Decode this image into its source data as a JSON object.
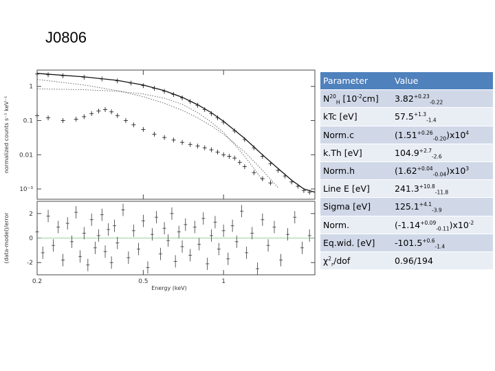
{
  "slide": {
    "title": "J0806"
  },
  "chart_data": [
    {
      "type": "scatter",
      "panel": "spectrum",
      "ylabel": "normalized counts s⁻¹ keV⁻¹",
      "yscale": "log",
      "xscale": "log",
      "xlim": [
        0.2,
        2.2
      ],
      "ylim": [
        0.0005,
        3
      ],
      "y_ticks": [
        1,
        0.1,
        0.01,
        0.001
      ],
      "y_tick_labels": [
        "1",
        "0.1",
        "0.01",
        "10⁻³"
      ],
      "data_points": [
        [
          0.2,
          2.3
        ],
        [
          0.22,
          2.2
        ],
        [
          0.25,
          2.05
        ],
        [
          0.3,
          1.85
        ],
        [
          0.35,
          1.65
        ],
        [
          0.4,
          1.45
        ],
        [
          0.45,
          1.25
        ],
        [
          0.5,
          1.05
        ],
        [
          0.55,
          0.88
        ],
        [
          0.6,
          0.72
        ],
        [
          0.65,
          0.58
        ],
        [
          0.7,
          0.46
        ],
        [
          0.75,
          0.36
        ],
        [
          0.8,
          0.28
        ],
        [
          0.85,
          0.21
        ],
        [
          0.9,
          0.16
        ],
        [
          0.95,
          0.12
        ],
        [
          1.0,
          0.09
        ],
        [
          1.1,
          0.05
        ],
        [
          1.2,
          0.028
        ],
        [
          1.3,
          0.016
        ],
        [
          1.4,
          0.009
        ],
        [
          1.5,
          0.0055
        ],
        [
          1.6,
          0.0035
        ],
        [
          1.7,
          0.0024
        ],
        [
          1.8,
          0.0016
        ],
        [
          1.9,
          0.0012
        ],
        [
          2.0,
          0.0009
        ],
        [
          2.1,
          0.0008
        ]
      ],
      "lower_points": [
        [
          0.2,
          0.14
        ],
        [
          0.22,
          0.12
        ],
        [
          0.25,
          0.1
        ],
        [
          0.28,
          0.11
        ],
        [
          0.3,
          0.13
        ],
        [
          0.32,
          0.16
        ],
        [
          0.34,
          0.19
        ],
        [
          0.36,
          0.21
        ],
        [
          0.38,
          0.18
        ],
        [
          0.4,
          0.14
        ],
        [
          0.43,
          0.1
        ],
        [
          0.46,
          0.075
        ],
        [
          0.5,
          0.055
        ],
        [
          0.55,
          0.04
        ],
        [
          0.6,
          0.032
        ],
        [
          0.65,
          0.027
        ],
        [
          0.7,
          0.023
        ],
        [
          0.75,
          0.02
        ],
        [
          0.8,
          0.018
        ],
        [
          0.85,
          0.016
        ],
        [
          0.9,
          0.014
        ],
        [
          0.95,
          0.012
        ],
        [
          1.0,
          0.01
        ],
        [
          1.05,
          0.009
        ],
        [
          1.1,
          0.008
        ],
        [
          1.15,
          0.006
        ],
        [
          1.2,
          0.0045
        ],
        [
          1.3,
          0.003
        ],
        [
          1.4,
          0.002
        ],
        [
          1.5,
          0.0015
        ]
      ],
      "model_total": [
        [
          0.2,
          2.4
        ],
        [
          0.3,
          1.9
        ],
        [
          0.4,
          1.5
        ],
        [
          0.5,
          1.1
        ],
        [
          0.6,
          0.75
        ],
        [
          0.7,
          0.48
        ],
        [
          0.8,
          0.29
        ],
        [
          0.9,
          0.17
        ],
        [
          1.0,
          0.095
        ],
        [
          1.2,
          0.03
        ],
        [
          1.4,
          0.01
        ],
        [
          1.6,
          0.004
        ],
        [
          1.8,
          0.0018
        ],
        [
          2.0,
          0.001
        ],
        [
          2.2,
          0.0008
        ]
      ],
      "model_comp_1": [
        [
          0.2,
          1.6
        ],
        [
          0.3,
          1.1
        ],
        [
          0.4,
          0.75
        ],
        [
          0.5,
          0.5
        ],
        [
          0.6,
          0.32
        ],
        [
          0.7,
          0.2
        ],
        [
          0.8,
          0.12
        ],
        [
          0.9,
          0.07
        ],
        [
          1.0,
          0.04
        ],
        [
          1.2,
          0.012
        ],
        [
          1.4,
          0.0035
        ],
        [
          1.6,
          0.0011
        ]
      ],
      "model_comp_2": [
        [
          0.2,
          0.85
        ],
        [
          0.3,
          0.8
        ],
        [
          0.4,
          0.72
        ],
        [
          0.5,
          0.6
        ],
        [
          0.6,
          0.45
        ],
        [
          0.7,
          0.3
        ],
        [
          0.8,
          0.17
        ],
        [
          0.9,
          0.09
        ],
        [
          1.0,
          0.045
        ],
        [
          1.1,
          0.02
        ],
        [
          1.2,
          0.009
        ],
        [
          1.3,
          0.004
        ],
        [
          1.4,
          0.0018
        ]
      ]
    },
    {
      "type": "scatter",
      "panel": "residuals",
      "xlabel": "Energy (keV)",
      "ylabel": "(data-model)/error",
      "xscale": "log",
      "xlim": [
        0.2,
        2.2
      ],
      "ylim": [
        -3,
        3
      ],
      "x_ticks": [
        0.2,
        0.5,
        1
      ],
      "x_tick_labels": [
        "0.2",
        "0.5",
        "1"
      ],
      "y_ticks": [
        2,
        0,
        -2
      ],
      "y_tick_labels": [
        "2",
        "0",
        "-2"
      ],
      "points": [
        [
          0.2,
          0.5
        ],
        [
          0.21,
          -1.2
        ],
        [
          0.22,
          1.8
        ],
        [
          0.23,
          -0.6
        ],
        [
          0.24,
          0.9
        ],
        [
          0.25,
          -1.8
        ],
        [
          0.26,
          1.2
        ],
        [
          0.27,
          -0.3
        ],
        [
          0.28,
          2.1
        ],
        [
          0.29,
          -1.5
        ],
        [
          0.3,
          0.4
        ],
        [
          0.31,
          -2.2
        ],
        [
          0.32,
          1.5
        ],
        [
          0.33,
          -0.8
        ],
        [
          0.34,
          0.2
        ],
        [
          0.35,
          1.9
        ],
        [
          0.36,
          -1.1
        ],
        [
          0.37,
          0.7
        ],
        [
          0.38,
          -2.0
        ],
        [
          0.39,
          1.0
        ],
        [
          0.4,
          -0.4
        ],
        [
          0.42,
          2.3
        ],
        [
          0.44,
          -1.6
        ],
        [
          0.46,
          0.6
        ],
        [
          0.48,
          -0.9
        ],
        [
          0.5,
          1.4
        ],
        [
          0.52,
          -2.4
        ],
        [
          0.54,
          0.3
        ],
        [
          0.56,
          1.7
        ],
        [
          0.58,
          -1.3
        ],
        [
          0.6,
          0.8
        ],
        [
          0.62,
          -0.2
        ],
        [
          0.64,
          2.0
        ],
        [
          0.66,
          -1.9
        ],
        [
          0.68,
          0.5
        ],
        [
          0.7,
          -0.7
        ],
        [
          0.72,
          1.1
        ],
        [
          0.75,
          -1.4
        ],
        [
          0.78,
          0.9
        ],
        [
          0.81,
          -0.5
        ],
        [
          0.84,
          1.6
        ],
        [
          0.87,
          -2.1
        ],
        [
          0.9,
          0.2
        ],
        [
          0.93,
          1.3
        ],
        [
          0.96,
          -0.9
        ],
        [
          1.0,
          0.6
        ],
        [
          1.04,
          -1.7
        ],
        [
          1.08,
          1.0
        ],
        [
          1.12,
          -0.3
        ],
        [
          1.17,
          2.2
        ],
        [
          1.22,
          -1.2
        ],
        [
          1.28,
          0.4
        ],
        [
          1.34,
          -2.5
        ],
        [
          1.4,
          1.5
        ],
        [
          1.47,
          -0.6
        ],
        [
          1.55,
          0.9
        ],
        [
          1.64,
          -1.8
        ],
        [
          1.74,
          0.3
        ],
        [
          1.85,
          1.7
        ],
        [
          1.97,
          -0.8
        ],
        [
          2.1,
          0.2
        ]
      ]
    }
  ],
  "table": {
    "header": {
      "param": "Parameter",
      "value": "Value"
    },
    "rows": [
      {
        "param": {
          "b": "N",
          "sub": "H",
          "a": " [10",
          "sup": "20",
          "c": "cm",
          "sup2": "-2",
          "d": "]"
        },
        "value": {
          "b": "3.82",
          "sup": "+0.23",
          "sub": "-0.22",
          "a": ""
        }
      },
      {
        "param": {
          "b": "kTc [eV]"
        },
        "value": {
          "b": "57.5",
          "sup": "+1.3",
          "sub": "-1.4",
          "a": ""
        }
      },
      {
        "param": {
          "b": "Norm.c"
        },
        "value": {
          "b": "(1.51",
          "sup": "+0.26",
          "sub": "-0.20",
          "a": ")x10",
          "sup2": "4"
        }
      },
      {
        "param": {
          "b": "k.Th [eV]"
        },
        "value": {
          "b": "104.9",
          "sup": "+2.7",
          "sub": "-2.6",
          "a": ""
        }
      },
      {
        "param": {
          "b": "Norm.h"
        },
        "value": {
          "b": "(1.62",
          "sup": "+0.04",
          "sub": "-0.04",
          "a": ")x10",
          "sup2": "3"
        }
      },
      {
        "param": {
          "b": "Line E [eV]"
        },
        "value": {
          "b": "241.3",
          "sup": "+10.8",
          "sub": "-11.8",
          "a": ""
        }
      },
      {
        "param": {
          "b": "Sigma [eV]"
        },
        "value": {
          "b": "125.1",
          "sup": "+4.1",
          "sub": "-3.9",
          "a": ""
        }
      },
      {
        "param": {
          "b": "Norm."
        },
        "value": {
          "b": "(-1.14",
          "sup": "+0.09",
          "sub": "-0.11",
          "a": ")x10",
          "sup2": "-2"
        }
      },
      {
        "param": {
          "b": "Eq.wid. [eV]"
        },
        "value": {
          "b": "-101.5",
          "sup": "+0.6",
          "sub": "-1.4",
          "a": ""
        }
      },
      {
        "param": {
          "b": "χ",
          "sup": "2",
          "sub": "r",
          "a": "/dof"
        },
        "value": {
          "b": "0.96/194"
        }
      }
    ]
  }
}
